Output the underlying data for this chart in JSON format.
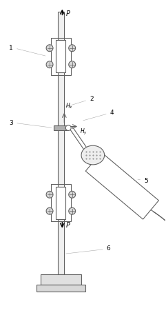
{
  "fig_width": 2.41,
  "fig_height": 4.57,
  "dpi": 100,
  "bg_color": "#ffffff",
  "lc": "#606060",
  "lc2": "#aaaaaa",
  "lw": 0.8,
  "lw2": 0.4
}
